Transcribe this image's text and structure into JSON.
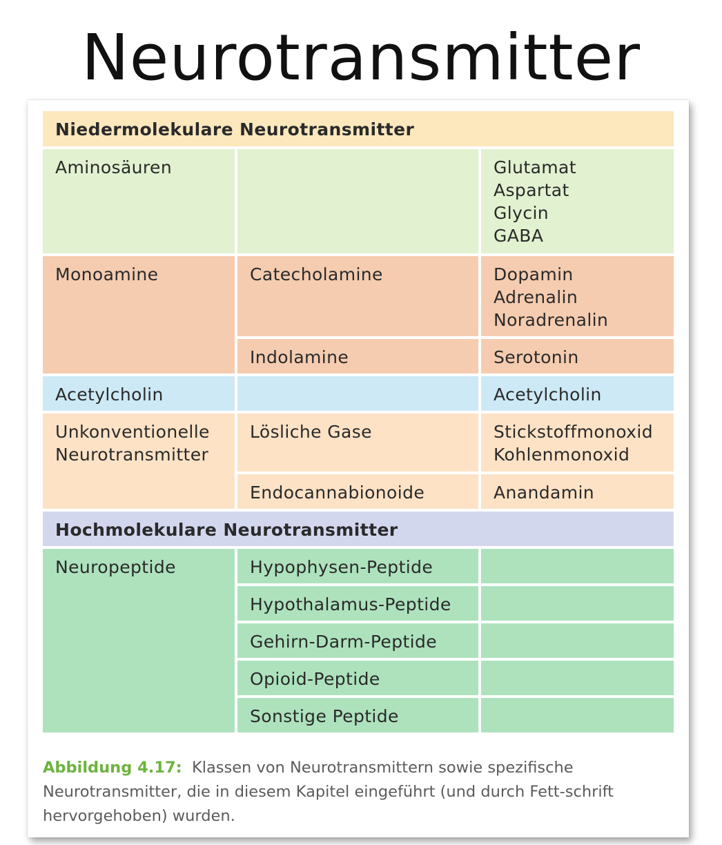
{
  "page_title": "Neurotransmitter",
  "colors": {
    "header_low": "#fde8bd",
    "amino": "#e2f1d0",
    "monoamine": "#f5ccb0",
    "acetylcholin": "#cde9f6",
    "unconventional": "#fde2c6",
    "header_high": "#d3d7ee",
    "neuropeptide": "#ade2bd"
  },
  "table": {
    "header_low": "Niedermolekulare Neurotransmitter",
    "rows": {
      "aminosaeuren": {
        "col1": "Aminosäuren",
        "col2": "",
        "col3": "Glutamat\nAspartat\nGlycin\nGABA"
      },
      "monoamine": {
        "col1": "Monoamine"
      },
      "catecholamine": {
        "col2": "Catecholamine",
        "col3": "Dopamin\nAdrenalin\nNoradrenalin"
      },
      "indolamine": {
        "col2": "Indolamine",
        "col3": "Serotonin"
      },
      "acetylcholin": {
        "col1": "Acetylcholin",
        "col2": "",
        "col3": "Acetylcholin"
      },
      "unkonventionelle": {
        "col1": "Unkonventionelle\nNeurotransmitter"
      },
      "gase": {
        "col2": "Lösliche Gase",
        "col3": "Stickstoffmonoxid\nKohlenmonoxid"
      },
      "endocannabionoide": {
        "col2": "Endocannabionoide",
        "col3": "Anandamin"
      }
    },
    "header_high": "Hochmolekulare Neurotransmitter",
    "neuropeptide": {
      "col1": "Neuropeptide",
      "subtypes": [
        "Hypophysen-Peptide",
        "Hypothalamus-Peptide",
        "Gehirn-Darm-Peptide",
        "Opioid-Peptide",
        "Sonstige Peptide"
      ]
    }
  },
  "caption": {
    "label": "Abbildung 4.17:",
    "text": "Klassen von Neurotransmittern sowie spezifische Neurotransmitter, die in diesem Kapitel eingeführt (und durch Fett-schrift hervorgehoben) wurden."
  }
}
